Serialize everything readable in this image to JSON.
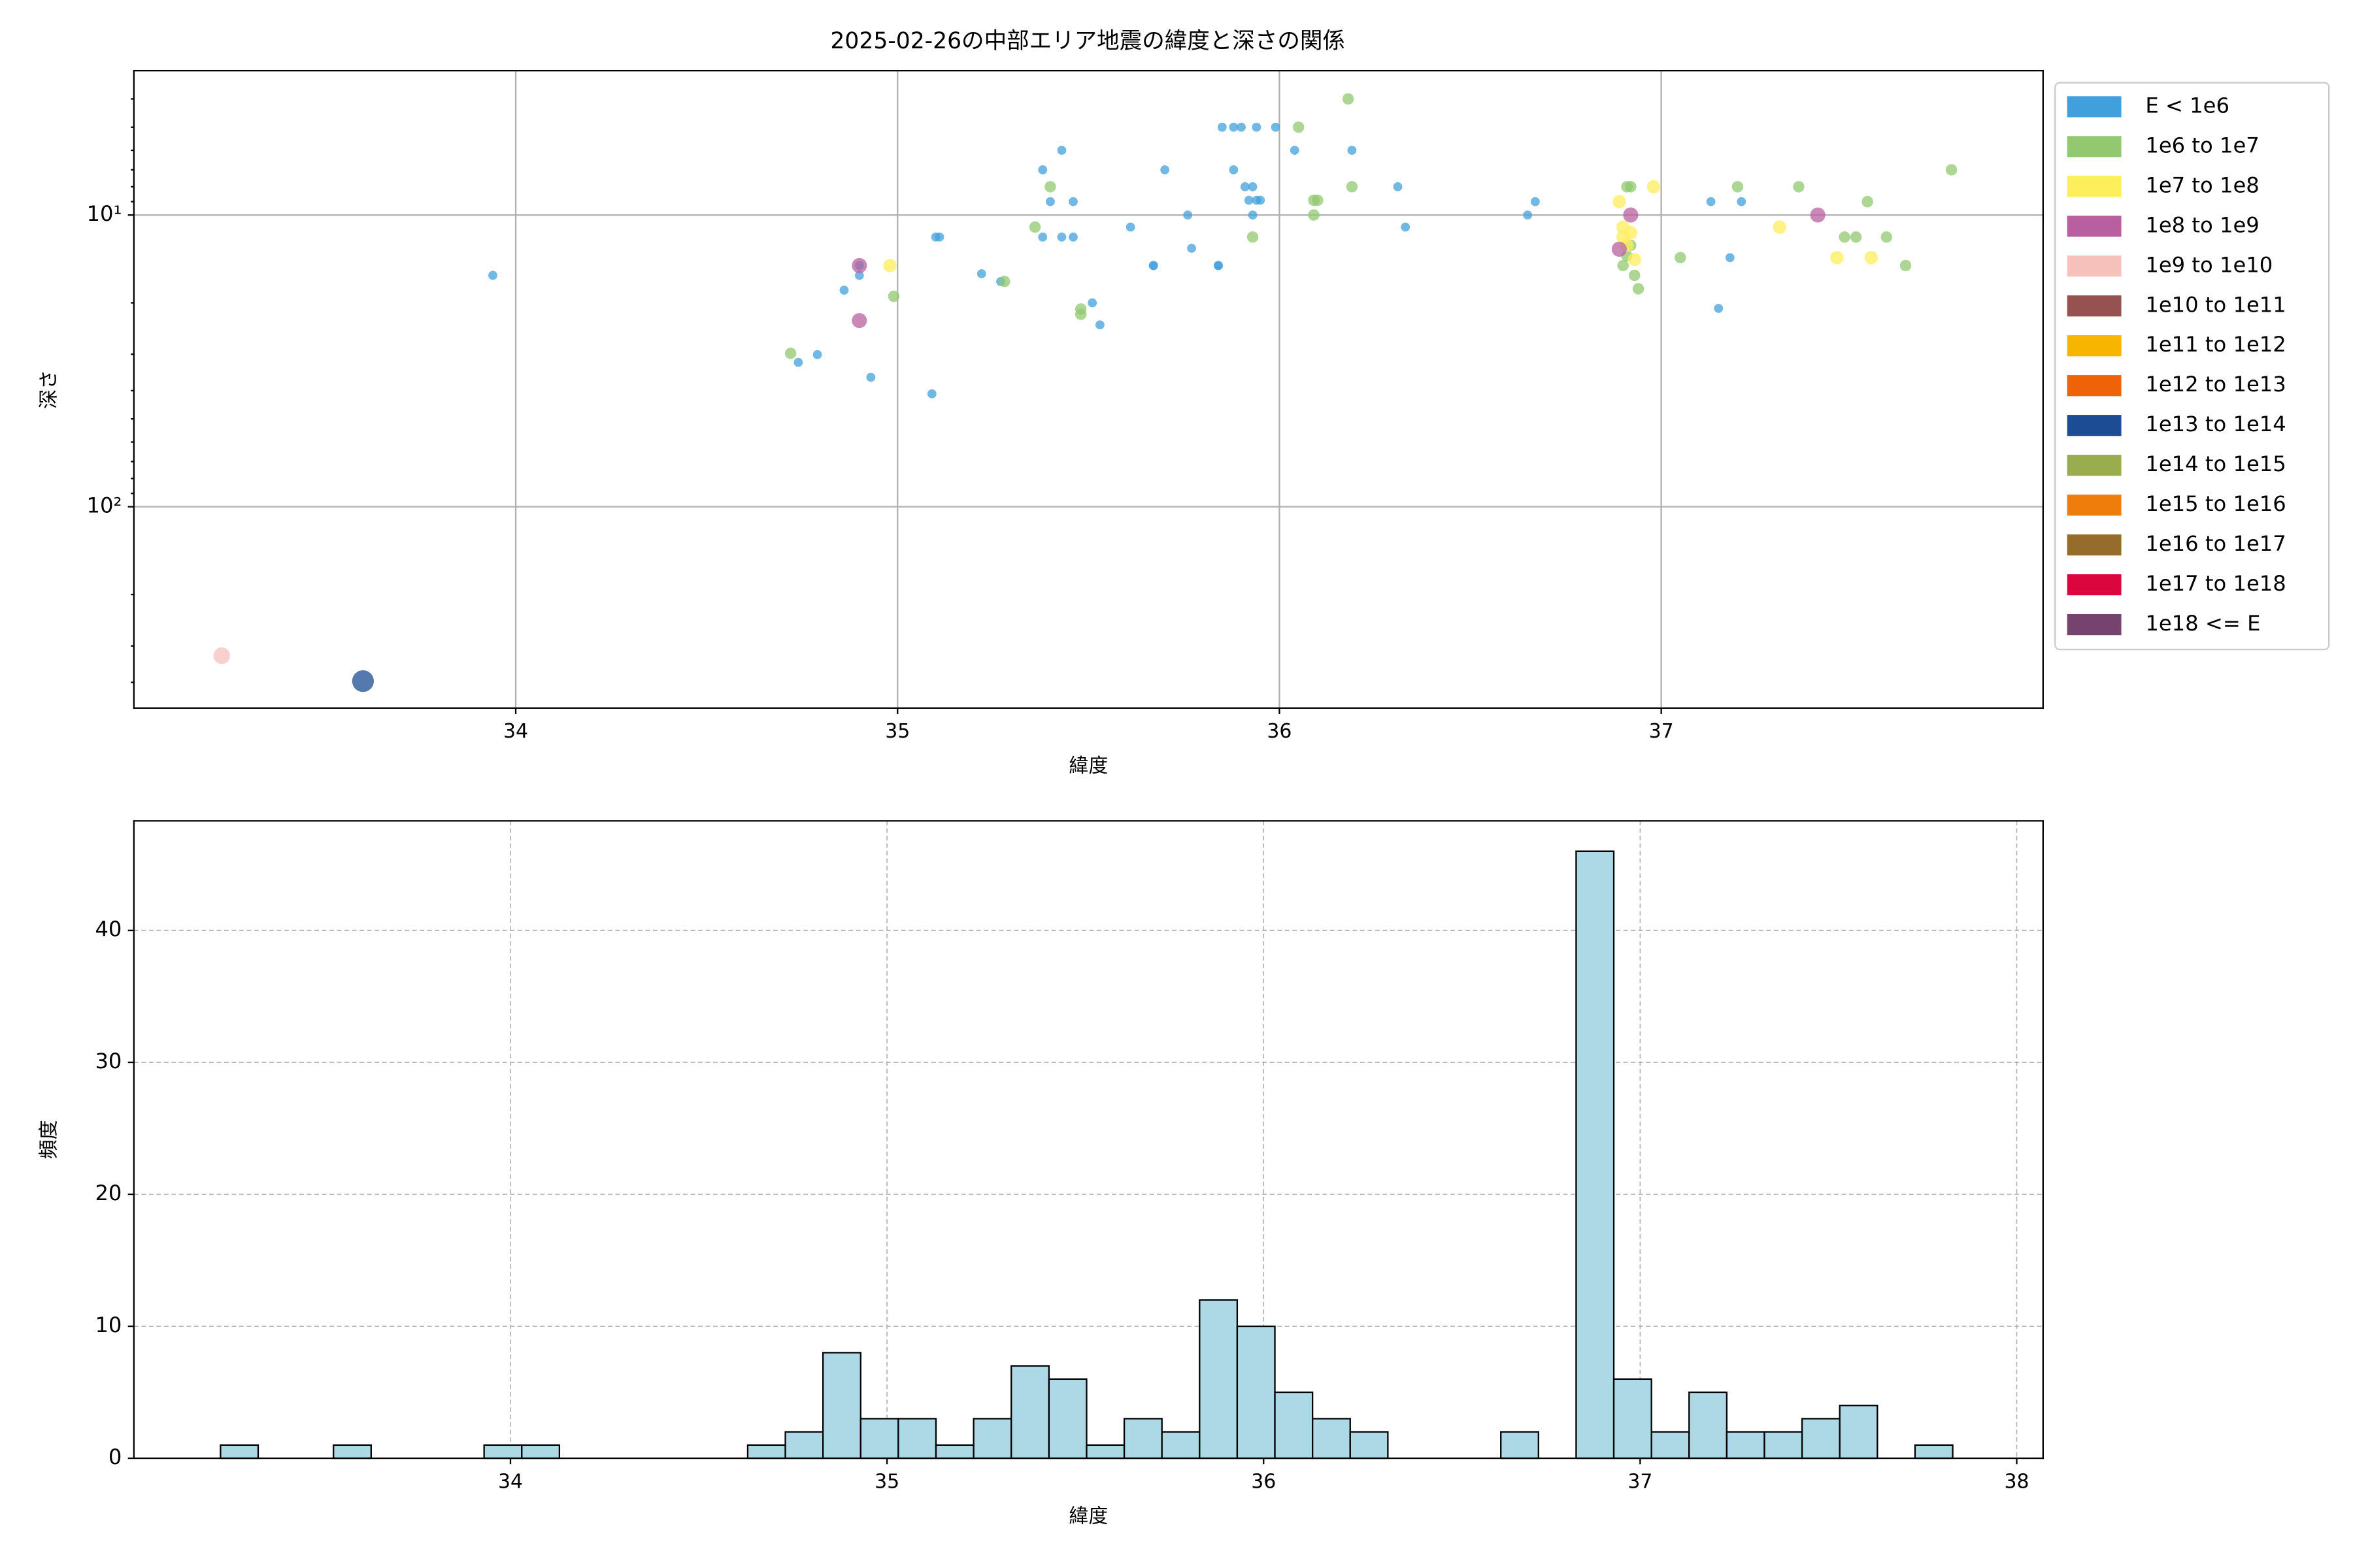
{
  "chart_data": [
    {
      "type": "scatter",
      "title": "2025-02-26の中部エリア地震の緯度と深さの関係",
      "xlabel": "緯度",
      "ylabel": "深さ",
      "xlim": [
        33.0,
        38.0
      ],
      "xticks": [
        34,
        35,
        36,
        37
      ],
      "ylim": [
        3.2,
        490
      ],
      "y_log": true,
      "y_inverted": true,
      "yticks": [
        {
          "value": 10,
          "label": "10¹"
        },
        {
          "value": 100,
          "label": "10²"
        }
      ],
      "grid": true,
      "grid_style": "solid",
      "legend": "outside-right",
      "series": [
        {
          "name": "E < 1e6",
          "color": "#41a0dc",
          "x": [
            33.94,
            34.74,
            34.79,
            34.86,
            34.9,
            34.9,
            34.93,
            35.09,
            35.1,
            35.11,
            35.22,
            35.27,
            35.38,
            35.4,
            35.38,
            35.43,
            35.43,
            35.46,
            35.46,
            35.51,
            35.53,
            35.61,
            35.67,
            35.67,
            35.7,
            35.76,
            35.77,
            35.84,
            35.84,
            35.85,
            35.88,
            35.9,
            35.94,
            35.99,
            35.88,
            35.91,
            35.93,
            35.92,
            35.94,
            35.95,
            35.93,
            36.04,
            36.19,
            36.31,
            36.33,
            36.65,
            36.67,
            37.13,
            37.21,
            37.18,
            37.15
          ],
          "values": [
            16.1,
            32,
            30.1,
            18.1,
            16.1,
            14.9,
            36,
            41,
            11.9,
            11.9,
            15.9,
            16.9,
            7.0,
            9.0,
            11.9,
            6.0,
            11.9,
            9.0,
            11.9,
            20,
            23.8,
            11.0,
            14.9,
            14.9,
            7.0,
            10,
            13,
            14.9,
            14.9,
            5.0,
            5.0,
            5.0,
            5.0,
            5.0,
            7.0,
            8.0,
            8.0,
            8.9,
            8.9,
            8.9,
            10,
            6.0,
            6.0,
            8.0,
            11.0,
            10,
            9.0,
            9.0,
            9.0,
            14.0,
            20.9
          ]
        },
        {
          "name": "1e6 to 1e7",
          "color": "#92c870",
          "x": [
            34.72,
            34.99,
            35.28,
            35.36,
            35.4,
            35.48,
            35.48,
            35.93,
            36.05,
            36.09,
            36.1,
            36.09,
            36.18,
            36.19,
            36.91,
            36.91,
            36.92,
            36.93,
            36.94,
            37.05,
            37.2,
            37.36,
            37.48,
            37.51,
            37.54,
            37.59,
            37.64,
            37.76,
            36.9,
            36.92
          ],
          "values": [
            29.8,
            19.0,
            16.9,
            11.0,
            8.0,
            21,
            21.9,
            11.9,
            5.0,
            8.9,
            8.9,
            10,
            4.0,
            8.0,
            13.8,
            8.0,
            8.0,
            16.1,
            17.9,
            14.0,
            8.0,
            8.0,
            11.9,
            11.9,
            9.0,
            11.9,
            14.9,
            7.0,
            14.9,
            12.7
          ]
        },
        {
          "name": "1e7 to 1e8",
          "color": "#fdee5c",
          "x": [
            34.98,
            36.89,
            36.9,
            36.9,
            36.91,
            36.92,
            36.93,
            36.98,
            37.31,
            37.46,
            37.55
          ],
          "values": [
            14.9,
            9.0,
            11.0,
            11.9,
            12.7,
            11.5,
            14.2,
            8.0,
            11.0,
            14.0,
            14.0
          ]
        },
        {
          "name": "1e8 to 1e9",
          "color": "#b8609f",
          "x": [
            34.9,
            34.9,
            36.92,
            37.41,
            36.89
          ],
          "values": [
            23.0,
            14.9,
            10.0,
            10.0,
            13.1
          ]
        },
        {
          "name": "1e9 to 1e10",
          "color": "#f6c0bb",
          "x": [
            33.23
          ],
          "values": [
            324
          ]
        },
        {
          "name": "1e10 to 1e11",
          "color": "#955251",
          "x": [],
          "values": []
        },
        {
          "name": "1e11 to 1e12",
          "color": "#f7b500",
          "x": [],
          "values": []
        },
        {
          "name": "1e12 to 1e13",
          "color": "#ee6208",
          "x": [],
          "values": []
        },
        {
          "name": "1e13 to 1e14",
          "color": "#1b4c94",
          "x": [
            33.6
          ],
          "values": [
            396
          ]
        },
        {
          "name": "1e14 to 1e15",
          "color": "#9aad4e",
          "x": [],
          "values": []
        },
        {
          "name": "1e15 to 1e16",
          "color": "#ef7d0b",
          "x": [],
          "values": []
        },
        {
          "name": "1e16 to 1e17",
          "color": "#956c2c",
          "x": [],
          "values": []
        },
        {
          "name": "1e17 to 1e18",
          "color": "#db063e",
          "x": [],
          "values": []
        },
        {
          "name": "1e18 <= E",
          "color": "#76426e",
          "x": [],
          "values": []
        }
      ]
    },
    {
      "type": "histogram",
      "xlabel": "緯度",
      "ylabel": "頻度",
      "xlim": [
        33.0,
        38.07
      ],
      "xticks": [
        34,
        35,
        36,
        37,
        38
      ],
      "ylim": [
        0,
        48.3
      ],
      "yticks": [
        0,
        10,
        20,
        30,
        40
      ],
      "grid": true,
      "grid_style": "dashed",
      "color": "#add8e6",
      "edge_color": "#000000",
      "bins": [
        33.23,
        33.33,
        33.43,
        33.53,
        33.63,
        33.73,
        33.83,
        33.93,
        34.03,
        34.13,
        34.23,
        34.33,
        34.43,
        34.53,
        34.63,
        34.73,
        34.83,
        34.93,
        35.03,
        35.13,
        35.23,
        35.33,
        35.43,
        35.53,
        35.63,
        35.73,
        35.83,
        35.93,
        36.03,
        36.13,
        36.23,
        36.33,
        36.43,
        36.53,
        36.63,
        36.73,
        36.83,
        36.93,
        37.03,
        37.13,
        37.23,
        37.33,
        37.43,
        37.53,
        37.63,
        37.73,
        37.83
      ],
      "values": [
        1,
        0,
        0,
        1,
        0,
        0,
        0,
        1,
        1,
        0,
        0,
        0,
        0,
        0,
        1,
        2,
        8,
        3,
        3,
        1,
        3,
        7,
        6,
        1,
        3,
        2,
        12,
        10,
        5,
        3,
        2,
        0,
        0,
        0,
        2,
        0,
        46,
        6,
        2,
        5,
        2,
        2,
        3,
        4,
        0,
        1
      ]
    }
  ]
}
